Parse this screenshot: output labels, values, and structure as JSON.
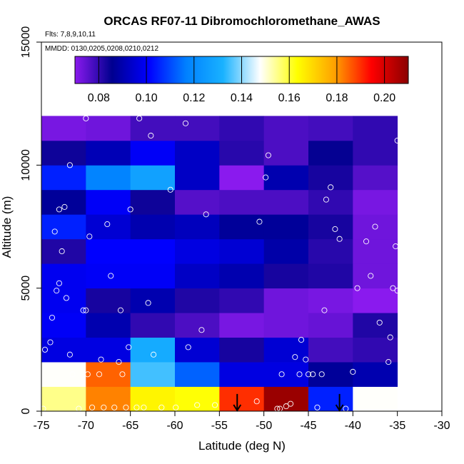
{
  "chart_data": {
    "type": "heatmap",
    "title": "ORCAS RF07-11 Dibromochloromethane_AWAS",
    "flights_label": "Flts: 7,8,9,10,11",
    "dates_label": "MMDD: 0130,0205,0208,0210,0212",
    "xlabel": "Latitude (deg N)",
    "ylabel": "Altitude (m)",
    "xlim": [
      -75,
      -30
    ],
    "ylim": [
      0,
      15000
    ],
    "x_ticks": [
      -75,
      -70,
      -65,
      -60,
      -55,
      -50,
      -45,
      -40,
      -35,
      -30
    ],
    "x_tick_labels": [
      "-75",
      "-70",
      "-65",
      "-60",
      "-55",
      "-50",
      "-45",
      "-40",
      "-35",
      "-30"
    ],
    "y_ticks": [
      0,
      5000,
      10000,
      15000
    ],
    "y_tick_labels": [
      "0",
      "5000",
      "10000",
      "15000"
    ],
    "colorbar": {
      "min": 0.07,
      "max": 0.21,
      "ticks": [
        0.08,
        0.1,
        0.12,
        0.14,
        0.16,
        0.18,
        0.2
      ],
      "tick_labels": [
        "0.08",
        "0.10",
        "0.12",
        "0.14",
        "0.16",
        "0.18",
        "0.20"
      ],
      "colors": [
        "#8a1aee",
        "#00008f",
        "#0000ff",
        "#0080ff",
        "#19b2ff",
        "#ffffff",
        "#ffff00",
        "#ffa200",
        "#ff0000",
        "#8b0000"
      ]
    },
    "grid": {
      "lat_edges": [
        -75,
        -70,
        -65,
        -60,
        -55,
        -50,
        -45,
        -40,
        -35
      ],
      "alt_edges": [
        0,
        1000,
        2000,
        3000,
        4000,
        5000,
        6000,
        7000,
        8000,
        9000,
        10000,
        11000,
        12000
      ],
      "values": [
        [
          0.155,
          0.182,
          0.165,
          0.163,
          0.19,
          0.208,
          0.105,
          0.148
        ],
        [
          0.148,
          0.185,
          0.135,
          0.113,
          0.097,
          0.097,
          0.087,
          0.09
        ],
        [
          0.097,
          0.097,
          0.13,
          0.095,
          0.083,
          0.095,
          0.078,
          0.08
        ],
        [
          0.1,
          0.09,
          0.08,
          0.077,
          0.072,
          0.073,
          0.074,
          0.082
        ],
        [
          0.099,
          0.083,
          0.09,
          0.082,
          0.08,
          0.073,
          0.072,
          0.07
        ],
        [
          0.099,
          0.1,
          0.1,
          0.093,
          0.09,
          0.083,
          0.082,
          0.073
        ],
        [
          0.082,
          0.101,
          0.101,
          0.097,
          0.095,
          0.089,
          0.081,
          0.073
        ],
        [
          0.105,
          0.095,
          0.09,
          0.092,
          0.087,
          0.087,
          0.083,
          0.073
        ],
        [
          0.087,
          0.1,
          0.084,
          0.076,
          0.077,
          0.077,
          0.08,
          0.072
        ],
        [
          0.105,
          0.118,
          0.127,
          0.093,
          0.07,
          0.09,
          0.083,
          0.076
        ],
        [
          0.084,
          0.091,
          0.1,
          0.093,
          0.081,
          0.077,
          0.085,
          0.08
        ],
        [
          0.072,
          0.073,
          0.078,
          0.078,
          0.08,
          0.077,
          0.078,
          0.08
        ]
      ]
    },
    "samples": [
      [
        -74.8,
        100
      ],
      [
        -74.6,
        2500
      ],
      [
        -74.0,
        2800
      ],
      [
        -73.8,
        3800
      ],
      [
        -73.3,
        4900
      ],
      [
        -73.0,
        5200
      ],
      [
        -73.5,
        7300
      ],
      [
        -73.0,
        8200
      ],
      [
        -72.7,
        6500
      ],
      [
        -72.4,
        8300
      ],
      [
        -72.2,
        4600
      ],
      [
        -71.8,
        2300
      ],
      [
        -71.8,
        10000
      ],
      [
        -71.5,
        1500
      ],
      [
        -70.8,
        100
      ],
      [
        -70.3,
        4100
      ],
      [
        -70.0,
        4100
      ],
      [
        -70.0,
        11900
      ],
      [
        -69.8,
        1500
      ],
      [
        -69.6,
        7100
      ],
      [
        -69.3,
        150
      ],
      [
        -68.5,
        1500
      ],
      [
        -68.3,
        2100
      ],
      [
        -68.0,
        150
      ],
      [
        -67.6,
        7600
      ],
      [
        -67.2,
        5500
      ],
      [
        -66.8,
        150
      ],
      [
        -66.3,
        2000
      ],
      [
        -66.1,
        4100
      ],
      [
        -65.9,
        1500
      ],
      [
        -65.5,
        150
      ],
      [
        -65.2,
        2600
      ],
      [
        -65.0,
        8200
      ],
      [
        -64.3,
        150
      ],
      [
        -64.0,
        11900
      ],
      [
        -63.5,
        150
      ],
      [
        -63.0,
        4400
      ],
      [
        -62.7,
        11200
      ],
      [
        -62.4,
        2300
      ],
      [
        -61.5,
        150
      ],
      [
        -60.5,
        9000
      ],
      [
        -59.9,
        150
      ],
      [
        -58.8,
        11700
      ],
      [
        -58.5,
        2600
      ],
      [
        -57.5,
        250
      ],
      [
        -57.0,
        3300
      ],
      [
        -56.5,
        8000
      ],
      [
        -55.5,
        250
      ],
      [
        -50.8,
        400
      ],
      [
        -50.5,
        7700
      ],
      [
        -49.8,
        9500
      ],
      [
        -49.5,
        10400
      ],
      [
        -48.2,
        100
      ],
      [
        -48.5,
        100
      ],
      [
        -48.0,
        1500
      ],
      [
        -47.5,
        200
      ],
      [
        -47.0,
        300
      ],
      [
        -46.5,
        2200
      ],
      [
        -46.0,
        1500
      ],
      [
        -45.8,
        2900
      ],
      [
        -45.3,
        2100
      ],
      [
        -45.0,
        1500
      ],
      [
        -44.5,
        1500
      ],
      [
        -44.0,
        150
      ],
      [
        -43.5,
        1500
      ],
      [
        -43.2,
        4100
      ],
      [
        -43.0,
        8600
      ],
      [
        -42.5,
        9100
      ],
      [
        -42.0,
        7400
      ],
      [
        -41.5,
        7000
      ],
      [
        -40.8,
        100
      ],
      [
        -40.0,
        1600
      ],
      [
        -39.5,
        5000
      ],
      [
        -38.5,
        6900
      ],
      [
        -38.0,
        5500
      ],
      [
        -37.5,
        7500
      ],
      [
        -37.0,
        3600
      ],
      [
        -36.0,
        2000
      ],
      [
        -35.8,
        3000
      ],
      [
        -35.5,
        5000
      ],
      [
        -35.2,
        6700
      ],
      [
        -35.0,
        4900
      ],
      [
        -35.0,
        11000
      ]
    ],
    "annotations": [
      {
        "type": "down-arrow",
        "lat": -53.0,
        "alt_top": 700
      },
      {
        "type": "down-arrow",
        "lat": -41.5,
        "alt_top": 700
      }
    ]
  }
}
